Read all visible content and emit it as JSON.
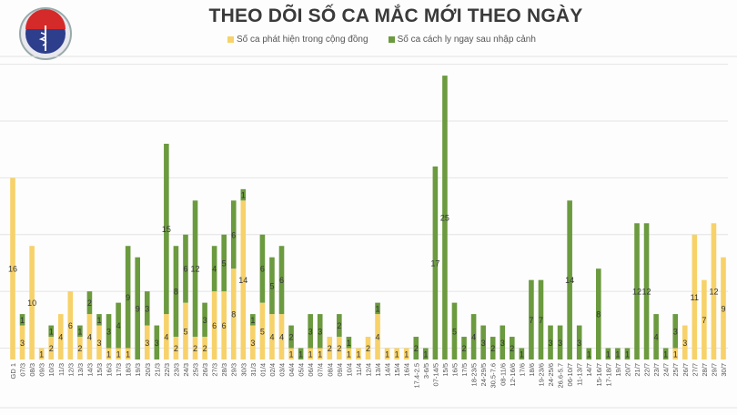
{
  "logo_text": [
    "BỘ Y TẾ",
    "MINISTRY OF HEALTH"
  ],
  "chart_data": {
    "type": "bar",
    "stacked": true,
    "title": "THEO DÕI SỐ CA MẮC MỚI THEO NGÀY",
    "xlabel": "",
    "ylabel": "",
    "ylim": [
      0,
      26
    ],
    "grid": true,
    "legend_position": "top",
    "colors": {
      "community": "#f7d26a",
      "quarantine": "#6b9a3f"
    },
    "categories": [
      "GD 1",
      "07/3",
      "08/3",
      "09/3",
      "10/3",
      "11/3",
      "12/3",
      "13/3",
      "14/3",
      "15/3",
      "16/3",
      "17/3",
      "18/3",
      "19/3",
      "20/3",
      "21/3",
      "22/3",
      "23/3",
      "24/3",
      "25/3",
      "26/3",
      "27/3",
      "28/3",
      "29/3",
      "30/3",
      "31/3",
      "01/4",
      "02/4",
      "03/4",
      "04/4",
      "05/4",
      "06/4",
      "07/4",
      "08/4",
      "09/4",
      "10/4",
      "11/4",
      "12/4",
      "13/4",
      "14/4",
      "15/4",
      "16/4",
      "17.4-2.5",
      "3-6/5",
      "07-14/5",
      "15/5",
      "16/5",
      "17/5",
      "18-23/5",
      "24-29/5",
      "30.5-7.6",
      "08-11/6",
      "12-16/6",
      "17/6",
      "18/6",
      "19-23/6",
      "24-25/6",
      "26.6-5.7",
      "06-10/7",
      "11-13/7",
      "14/7",
      "15-16/7",
      "17-18/7",
      "19/7",
      "20/7",
      "21/7",
      "22/7",
      "23/7",
      "24/7",
      "25/7",
      "26/7",
      "27/7",
      "28/7",
      "29/7",
      "30/7"
    ],
    "series": [
      {
        "name": "Số ca phát hiện trong cộng đồng",
        "values": [
          16,
          3,
          10,
          1,
          2,
          4,
          6,
          2,
          4,
          3,
          1,
          1,
          1,
          0,
          3,
          0,
          4,
          2,
          5,
          2,
          2,
          6,
          6,
          8,
          14,
          3,
          5,
          4,
          4,
          1,
          0,
          1,
          1,
          2,
          2,
          1,
          1,
          2,
          4,
          1,
          1,
          1,
          0,
          0,
          0,
          0,
          0,
          0,
          0,
          0,
          0,
          0,
          0,
          0,
          0,
          0,
          0,
          0,
          0,
          0,
          0,
          0,
          0,
          0,
          0,
          0,
          0,
          0,
          0,
          1,
          3,
          11,
          7,
          12,
          9
        ]
      },
      {
        "name": "Số ca cách ly ngay sau nhập cảnh",
        "values": [
          0,
          1,
          0,
          0,
          1,
          0,
          0,
          1,
          2,
          1,
          3,
          4,
          9,
          9,
          3,
          3,
          15,
          8,
          6,
          12,
          3,
          4,
          5,
          6,
          1,
          1,
          6,
          5,
          6,
          2,
          1,
          3,
          3,
          0,
          2,
          1,
          0,
          0,
          1,
          0,
          0,
          0,
          2,
          1,
          17,
          25,
          5,
          2,
          4,
          3,
          2,
          3,
          2,
          1,
          7,
          7,
          3,
          3,
          14,
          3,
          1,
          8,
          1,
          1,
          1,
          12,
          12,
          4,
          1,
          3,
          0,
          0,
          0,
          0,
          0
        ]
      }
    ]
  }
}
